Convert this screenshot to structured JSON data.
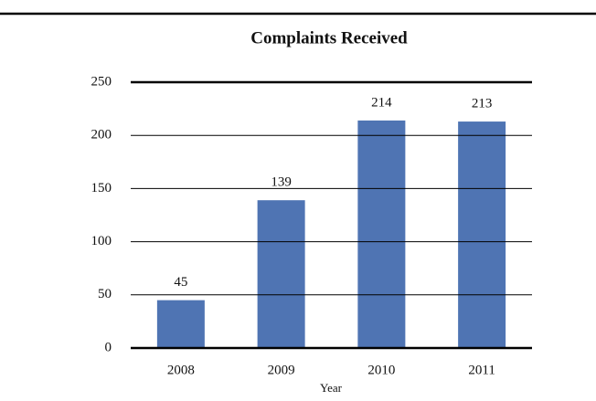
{
  "chart_data": {
    "type": "bar",
    "title": "Complaints Received",
    "x_label": "Year",
    "categories": [
      "2008",
      "2009",
      "2010",
      "2011"
    ],
    "values": [
      45,
      139,
      214,
      213
    ],
    "color": "#4f74b3",
    "ylim": [
      0,
      250
    ],
    "yticks": [
      0,
      50,
      100,
      150,
      200,
      250
    ],
    "grid": true,
    "data_labels": true
  }
}
